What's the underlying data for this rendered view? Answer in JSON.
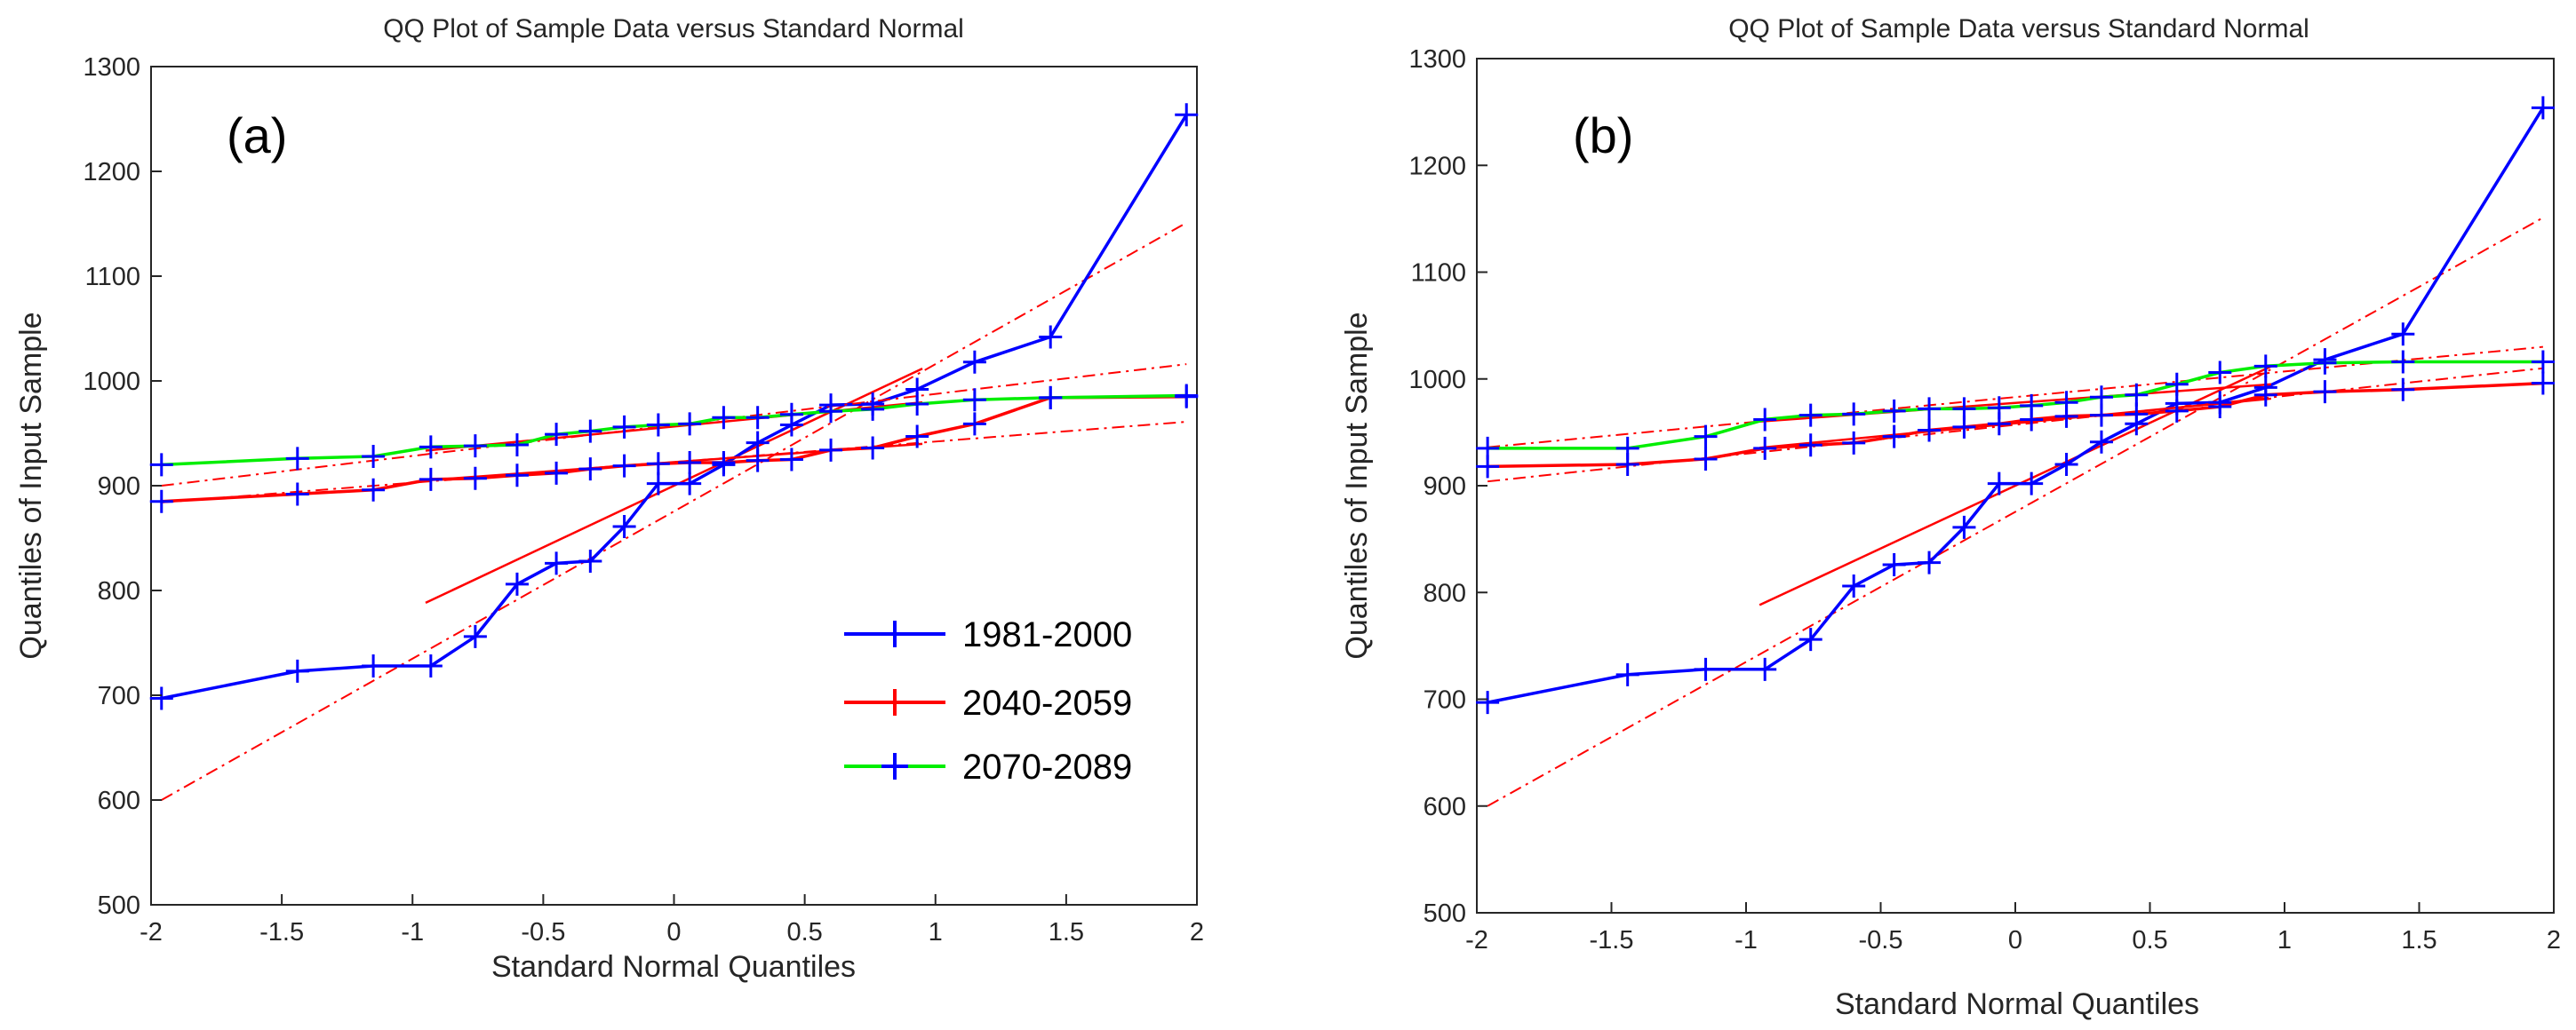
{
  "chart_data": [
    {
      "type": "line",
      "panel_label": "(a)",
      "title": "QQ Plot of Sample Data versus Standard Normal",
      "xlabel": "Standard Normal Quantiles",
      "ylabel": "Quantiles of Input Sample",
      "xlim": [
        -2,
        2
      ],
      "ylim": [
        500,
        1300
      ],
      "xticks": [
        "-2",
        "-1.5",
        "-1",
        "-0.5",
        "0",
        "0.5",
        "1",
        "1.5",
        "2"
      ],
      "yticks": [
        "500",
        "600",
        "700",
        "800",
        "900",
        "1000",
        "1100",
        "1200",
        "1300"
      ],
      "legend": [
        "1981-2000",
        "2040-2059",
        "2070-2089"
      ],
      "legend_position": "lower-right",
      "x": [
        -1.96,
        -1.44,
        -1.15,
        -0.93,
        -0.76,
        -0.6,
        -0.45,
        -0.32,
        -0.19,
        -0.06,
        0.06,
        0.19,
        0.32,
        0.45,
        0.6,
        0.76,
        0.93,
        1.15,
        1.44,
        1.96
      ],
      "series": [
        {
          "name": "1981-2000",
          "color": "#0000ff",
          "values": [
            697,
            723,
            728,
            728,
            756,
            806,
            826,
            828,
            861,
            902,
            902,
            920,
            941,
            958,
            977,
            978,
            992,
            1018,
            1042,
            1254
          ],
          "fit": {
            "q1": [
              -0.68,
              820
            ],
            "q3": [
              0.68,
              980
            ],
            "ext": [
              600,
              1151
            ]
          }
        },
        {
          "name": "2040-2059",
          "color": "#ff0000",
          "values": [
            885,
            892,
            896,
            906,
            907,
            910,
            912,
            916,
            919,
            921,
            922,
            922,
            924,
            925,
            934,
            936,
            947,
            959,
            984,
            985
          ],
          "fit": {
            "q1": [
              -0.68,
              910
            ],
            "q3": [
              0.68,
              935
            ],
            "ext": [
              884,
              961
            ]
          }
        },
        {
          "name": "2070-2089",
          "color": "#00ee00",
          "values": [
            920,
            926,
            928,
            937,
            938,
            939,
            949,
            952,
            956,
            958,
            959,
            965,
            965,
            968,
            971,
            973,
            978,
            982,
            984,
            986
          ],
          "fit": {
            "q1": [
              -0.68,
              940
            ],
            "q3": [
              0.68,
              973
            ],
            "ext": [
              900,
              1016
            ]
          }
        }
      ]
    },
    {
      "type": "line",
      "panel_label": "(b)",
      "title": "QQ Plot of Sample Data versus Standard Normal",
      "xlabel": "Standard Normal Quantiles",
      "ylabel": "Quantiles of Input Sample",
      "xlim": [
        -2,
        2
      ],
      "ylim": [
        500,
        1300
      ],
      "xticks": [
        "-2",
        "-1.5",
        "-1",
        "-0.5",
        "0",
        "0.5",
        "1",
        "1.5",
        "2"
      ],
      "yticks": [
        "500",
        "600",
        "700",
        "800",
        "900",
        "1000",
        "1100",
        "1200",
        "1300"
      ],
      "x": [
        -1.96,
        -1.44,
        -1.15,
        -0.93,
        -0.76,
        -0.6,
        -0.45,
        -0.32,
        -0.19,
        -0.06,
        0.06,
        0.19,
        0.32,
        0.45,
        0.6,
        0.76,
        0.93,
        1.15,
        1.44,
        1.96
      ],
      "series": [
        {
          "name": "1981-2000",
          "color": "#0000ff",
          "values": [
            697,
            723,
            728,
            728,
            756,
            806,
            826,
            828,
            861,
            902,
            902,
            920,
            941,
            958,
            977,
            978,
            992,
            1018,
            1042,
            1254
          ],
          "fit": {
            "q1": [
              -0.68,
              820
            ],
            "q3": [
              0.68,
              980
            ],
            "ext": [
              600,
              1151
            ]
          }
        },
        {
          "name": "2040-2059",
          "color": "#ff0000",
          "values": [
            918,
            920,
            925,
            935,
            938,
            940,
            946,
            952,
            955,
            958,
            962,
            965,
            966,
            967,
            970,
            974,
            985,
            988,
            990,
            996
          ],
          "fit": {
            "q1": [
              -0.68,
              942
            ],
            "q3": [
              0.68,
              975
            ],
            "ext": [
              904,
              1010
            ]
          }
        },
        {
          "name": "2070-2089",
          "color": "#00ee00",
          "values": [
            935,
            935,
            946,
            962,
            966,
            967,
            970,
            972,
            972,
            973,
            975,
            978,
            983,
            985,
            995,
            1006,
            1012,
            1015,
            1016,
            1016
          ],
          "fit": {
            "q1": [
              -0.68,
              965
            ],
            "q3": [
              0.68,
              990
            ],
            "ext": [
              936,
              1030
            ]
          }
        }
      ]
    }
  ]
}
